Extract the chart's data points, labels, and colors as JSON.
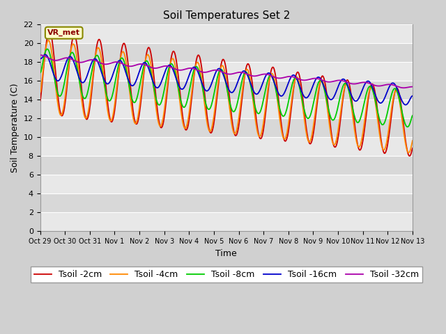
{
  "title": "Soil Temperatures Set 2",
  "xlabel": "Time",
  "ylabel": "Soil Temperature (C)",
  "ylim": [
    0,
    22
  ],
  "yticks": [
    0,
    2,
    4,
    6,
    8,
    10,
    12,
    14,
    16,
    18,
    20,
    22
  ],
  "xtick_labels": [
    "Oct 29",
    "Oct 30",
    "Oct 31",
    "Nov 1",
    "Nov 2",
    "Nov 3",
    "Nov 4",
    "Nov 5",
    "Nov 6",
    "Nov 7",
    "Nov 8",
    "Nov 9",
    "Nov 10",
    "Nov 11",
    "Nov 12",
    "Nov 13"
  ],
  "annotation_text": "VR_met",
  "series": [
    {
      "label": "Tsoil -2cm",
      "color": "#cc0000"
    },
    {
      "label": "Tsoil -4cm",
      "color": "#ff8800"
    },
    {
      "label": "Tsoil -8cm",
      "color": "#00cc00"
    },
    {
      "label": "Tsoil -16cm",
      "color": "#0000cc"
    },
    {
      "label": "Tsoil -32cm",
      "color": "#aa00aa"
    }
  ],
  "stripe_colors": [
    "#e8e8e8",
    "#d8d8d8"
  ],
  "fig_facecolor": "#d0d0d0",
  "ax_facecolor": "#e0e0e0",
  "title_fontsize": 11,
  "axis_label_fontsize": 9,
  "tick_fontsize": 8,
  "legend_fontsize": 9,
  "linewidth": 1.3
}
